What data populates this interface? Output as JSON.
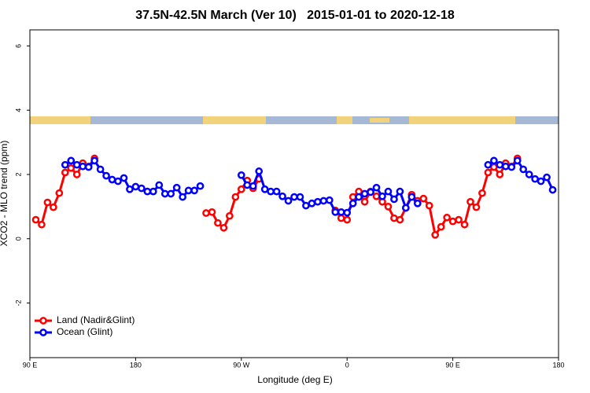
{
  "chart_data": {
    "type": "line",
    "title": "37.5N-42.5N March (Ver 10)   2015-01-01 to 2020-12-18",
    "x_label": "Longitude (deg E)",
    "y_label": "XCO2 - MLO trend (ppm)",
    "xlim": [
      90,
      540
    ],
    "xticks": [
      {
        "value": 90,
        "label": "90 E"
      },
      180,
      {
        "value": 270,
        "label": "90 W"
      },
      {
        "value": 360,
        "label": "0"
      },
      {
        "value": 450,
        "label": "90 E"
      },
      {
        "value": 540,
        "label": "180"
      }
    ],
    "ylim": [
      -3.7,
      6.5
    ],
    "yticks": [
      -2,
      0,
      2,
      4,
      6
    ],
    "legend": "bottomleft",
    "x": [
      95,
      100,
      105,
      110,
      115,
      120,
      125,
      130,
      135,
      140,
      145,
      150,
      155,
      160,
      165,
      170,
      175,
      180,
      185,
      190,
      195,
      200,
      205,
      210,
      215,
      220,
      225,
      230,
      235,
      240,
      245,
      250,
      255,
      260,
      265,
      270,
      275,
      280,
      285,
      290,
      295,
      300,
      305,
      310,
      315,
      320,
      325,
      330,
      335,
      340,
      345,
      350,
      355,
      360,
      365,
      370,
      375,
      380,
      385,
      390,
      395,
      400,
      405,
      410,
      415,
      420,
      425,
      430,
      435,
      440,
      445,
      450,
      455,
      460,
      465,
      470,
      475,
      480,
      485,
      490,
      495,
      500,
      505,
      510,
      515,
      520,
      525,
      530,
      535
    ],
    "series": [
      {
        "name": "Land (Nadir&Glint)",
        "color": "#ff0000",
        "values": [
          0.59,
          0.44,
          1.13,
          0.98,
          1.42,
          2.06,
          2.2,
          2.0,
          2.35,
          2.25,
          2.5,
          null,
          null,
          null,
          null,
          null,
          null,
          null,
          null,
          null,
          null,
          null,
          null,
          null,
          null,
          null,
          null,
          null,
          null,
          0.8,
          0.83,
          0.49,
          0.34,
          0.71,
          1.3,
          1.54,
          1.81,
          1.57,
          1.86,
          null,
          null,
          null,
          null,
          null,
          null,
          null,
          null,
          null,
          null,
          null,
          null,
          0.88,
          0.64,
          0.59,
          1.3,
          1.47,
          1.15,
          1.47,
          1.32,
          1.15,
          1.0,
          0.64,
          0.59,
          0.96,
          1.37,
          1.18,
          1.25,
          1.03,
          0.12,
          0.37,
          0.66,
          0.54,
          0.59,
          0.44,
          1.15,
          0.98,
          1.42,
          2.06,
          2.23,
          2.0,
          2.35,
          2.25,
          2.5,
          null,
          null,
          null,
          null,
          null,
          null
        ]
      },
      {
        "name": "Ocean (Glint)",
        "color": "#0000ff",
        "values": [
          null,
          null,
          null,
          null,
          null,
          2.3,
          2.43,
          2.3,
          2.25,
          2.23,
          2.43,
          2.16,
          1.96,
          1.84,
          1.79,
          1.89,
          1.54,
          1.62,
          1.57,
          1.47,
          1.47,
          1.67,
          1.4,
          1.4,
          1.59,
          1.3,
          1.5,
          1.5,
          1.64,
          null,
          null,
          null,
          null,
          null,
          null,
          1.98,
          1.67,
          1.64,
          2.1,
          1.54,
          1.47,
          1.47,
          1.32,
          1.18,
          1.3,
          1.3,
          1.03,
          1.1,
          1.15,
          1.18,
          1.2,
          0.83,
          0.83,
          0.81,
          1.1,
          1.3,
          1.4,
          1.45,
          1.59,
          1.32,
          1.47,
          1.23,
          1.47,
          0.96,
          1.3,
          1.1,
          null,
          null,
          null,
          null,
          null,
          null,
          null,
          null,
          null,
          null,
          null,
          2.3,
          2.43,
          2.3,
          2.25,
          2.23,
          2.43,
          2.16,
          2.0,
          1.86,
          1.79,
          1.91,
          1.52
        ]
      }
    ]
  }
}
